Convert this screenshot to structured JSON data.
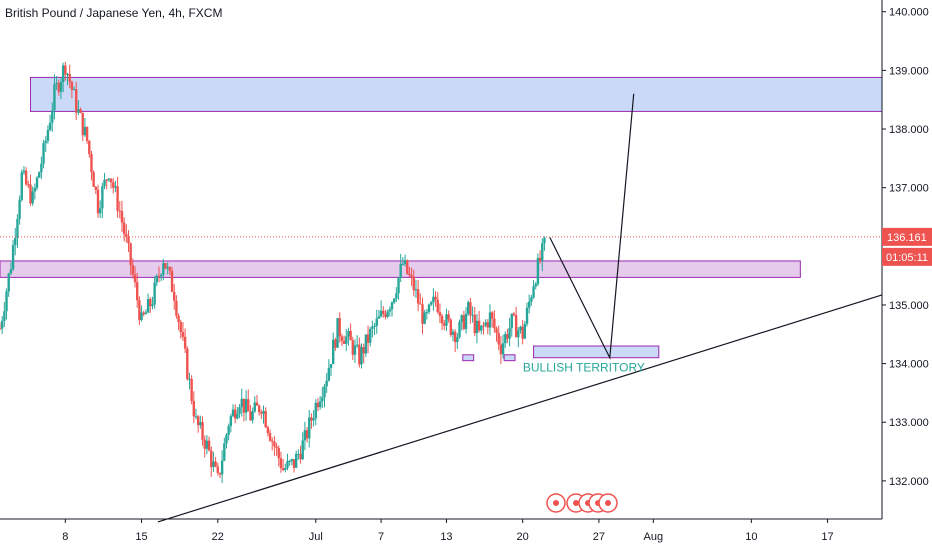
{
  "header": {
    "title": "British Pound / Japanese Yen, 4h, FXCM"
  },
  "chart_data": {
    "type": "candlestick",
    "symbol": "British Pound / Japanese Yen",
    "interval": "4h",
    "source": "FXCM",
    "y_ticks": [
      "140.000",
      "139.000",
      "138.000",
      "137.000",
      "135.000",
      "134.000",
      "133.000",
      "132.000"
    ],
    "y_tick_values": [
      140,
      139,
      138,
      137,
      135,
      134,
      133,
      132
    ],
    "ylim": [
      131.35,
      140.2
    ],
    "x_ticks": [
      "8",
      "15",
      "22",
      "Jul",
      "7",
      "13",
      "20",
      "27",
      "Aug",
      "10",
      "17"
    ],
    "x_tick_days": [
      8,
      15,
      22,
      31,
      37,
      43,
      50,
      57,
      62,
      71,
      78
    ],
    "xlim_days": [
      2,
      83
    ],
    "price_close": {
      "value": 136.161,
      "label": "136.161",
      "color": "#ef5350"
    },
    "countdown": {
      "value": "01:05:11",
      "color": "#ef5350"
    },
    "colors": {
      "up": "#26a69a",
      "down": "#ef5350",
      "zone_fill": "#bbd0f5",
      "zone_border": "#9c27b0",
      "purple_fill": "#e1bee7"
    },
    "zones": [
      {
        "kind": "supply",
        "day_start": 4.8,
        "day_end": 83,
        "low": 138.3,
        "high": 138.88,
        "fill": "#bbd0f5"
      },
      {
        "kind": "resistance",
        "day_start": 2,
        "day_end": 75.5,
        "low": 135.47,
        "high": 135.75,
        "fill": "#e1bee7"
      },
      {
        "kind": "demand",
        "day_start": 51,
        "day_end": 62.5,
        "low": 134.1,
        "high": 134.3,
        "fill": "#bbd0f5"
      },
      {
        "kind": "small",
        "day_start": 44.5,
        "day_end": 45.5,
        "low": 134.05,
        "high": 134.15,
        "fill": "#bbd0f5"
      },
      {
        "kind": "small",
        "day_start": 48.3,
        "day_end": 49.3,
        "low": 134.05,
        "high": 134.15,
        "fill": "#bbd0f5"
      }
    ],
    "trendline": {
      "p1": {
        "day": 16.5,
        "price": 131.3
      },
      "p2": {
        "day": 83,
        "price": 135.17
      }
    },
    "projection": [
      {
        "day": 52.5,
        "price": 136.15
      },
      {
        "day": 58,
        "price": 134.1
      },
      {
        "day": 60.2,
        "price": 138.6
      }
    ],
    "annotation": {
      "text": "BULLISH TERRITORY",
      "day": 57,
      "price": 133.93,
      "color": "#26a69a"
    },
    "path": [
      [
        2,
        134.6
      ],
      [
        3,
        135.7
      ],
      [
        4,
        137.2
      ],
      [
        5,
        136.8
      ],
      [
        6,
        137.6
      ],
      [
        7,
        138.6
      ],
      [
        8,
        139.1
      ],
      [
        9,
        138.4
      ],
      [
        10,
        137.8
      ],
      [
        11,
        136.7
      ],
      [
        12,
        137.3
      ],
      [
        13,
        136.6
      ],
      [
        14,
        135.7
      ],
      [
        15,
        134.7
      ],
      [
        16,
        135.1
      ],
      [
        17,
        135.8
      ],
      [
        18,
        135.2
      ],
      [
        19,
        134.1
      ],
      [
        20,
        133.0
      ],
      [
        21,
        132.6
      ],
      [
        22,
        132.0
      ],
      [
        23,
        133.0
      ],
      [
        24,
        133.4
      ],
      [
        25,
        133.1
      ],
      [
        26,
        133.3
      ],
      [
        27,
        132.7
      ],
      [
        28,
        132.2
      ],
      [
        29,
        132.3
      ],
      [
        30,
        132.7
      ],
      [
        31,
        133.3
      ],
      [
        32,
        133.8
      ],
      [
        33,
        134.6
      ],
      [
        34,
        134.4
      ],
      [
        35,
        134.1
      ],
      [
        36,
        134.5
      ],
      [
        37,
        134.8
      ],
      [
        38,
        135.1
      ],
      [
        39,
        135.7
      ],
      [
        40,
        135.3
      ],
      [
        41,
        134.7
      ],
      [
        42,
        135.1
      ],
      [
        43,
        134.7
      ],
      [
        44,
        134.5
      ],
      [
        45,
        134.9
      ],
      [
        46,
        134.5
      ],
      [
        47,
        134.8
      ],
      [
        48,
        134.3
      ],
      [
        49,
        134.7
      ],
      [
        50,
        134.5
      ],
      [
        51,
        135.4
      ],
      [
        52,
        136.0
      ]
    ]
  }
}
